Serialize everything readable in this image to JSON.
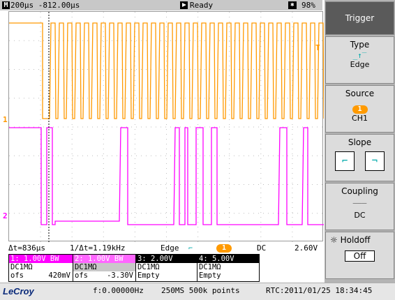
{
  "topbar": {
    "timebase": "200µs -812.00µs",
    "status": "Ready",
    "battery_or_memory": "98%"
  },
  "statusbar": {
    "delta_t": "Δt=836µs",
    "inv_delta_t": "1/Δt=1.19kHz",
    "trigger_mode": "Edge",
    "trigger_source_badge": "1",
    "coupling": "DC",
    "trigger_level": "2.60V"
  },
  "channels": [
    {
      "header": "1: 1.00V  BW",
      "coupling": "DC1MΩ",
      "offset_label": "ofs",
      "offset": "420mV",
      "color": "#ff9900"
    },
    {
      "header": "2: 1.00V  BW",
      "coupling": "DC1MΩ",
      "offset_label": "ofs",
      "offset": "-3.30V",
      "color": "#ff00ff"
    },
    {
      "header": "3: 2.00V",
      "coupling": "DC1MΩ",
      "offset_label": "",
      "offset": "Empty",
      "color": "#000000"
    },
    {
      "header": "4: 5.00V",
      "coupling": "DC1MΩ",
      "offset_label": "",
      "offset": "Empty",
      "color": "#000000"
    }
  ],
  "bottombar": {
    "brand": "LeCroy",
    "frequency": "f:0.00000Hz",
    "sampling": "250MS 500k points",
    "rtc": "RTC:2011/01/25 18:34:45"
  },
  "menu": {
    "title": "Trigger",
    "type_label": "Type",
    "type_value": "Edge",
    "source_label": "Source",
    "source_badge": "1",
    "source_value": "CH1",
    "slope_label": "Slope",
    "coupling_label": "Coupling",
    "coupling_value": "DC",
    "holdoff_label": "Holdoff",
    "holdoff_value": "Off"
  },
  "markers": {
    "ch1": "1",
    "ch2": "2",
    "trig_t": "T"
  },
  "colors": {
    "ch1": "#ff9900",
    "ch2": "#ff00ff",
    "cursor": "#000000"
  }
}
